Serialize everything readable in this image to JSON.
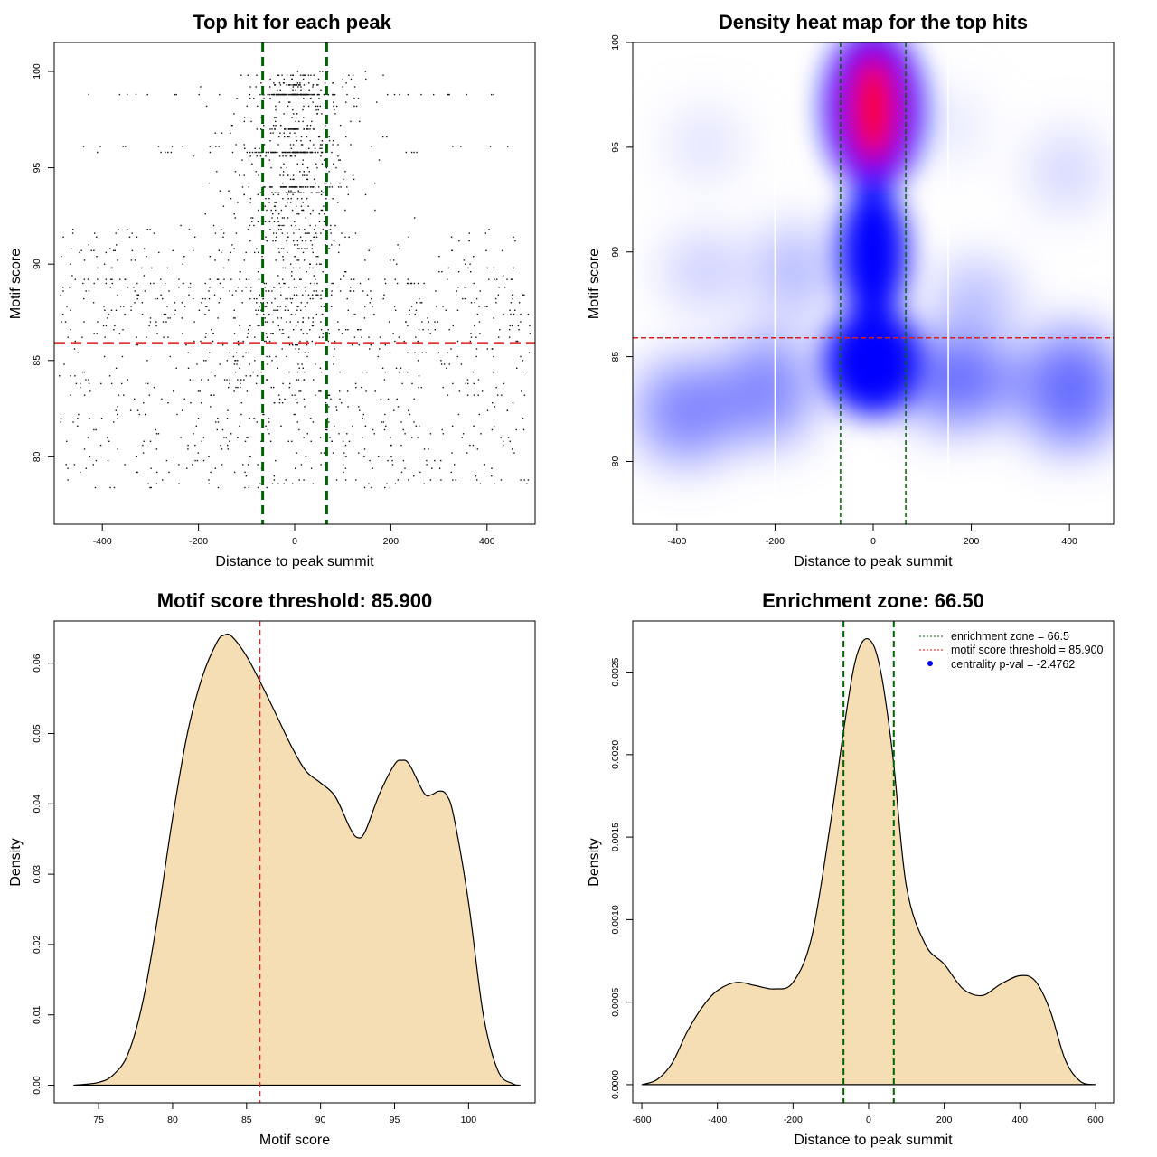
{
  "chart_data": [
    {
      "type": "scatter",
      "title": "Top hit for each peak",
      "xlabel": "Distance to peak summit",
      "ylabel": "Motif score",
      "xlim": [
        -500,
        500
      ],
      "ylim": [
        76.5,
        101.5
      ],
      "x_ticks": [
        -400,
        -200,
        0,
        200,
        400
      ],
      "y_ticks": [
        80,
        85,
        90,
        95,
        100
      ],
      "enrichment_zone": 66.5,
      "motif_threshold": 85.9,
      "point_summary": "~1900 top-hit points; dense central band (|x| < 100) at scores 93-100 with horizontal streaks at 98.8 and 95.8"
    },
    {
      "type": "heatmap",
      "title": "Density heat map for the top hits",
      "xlabel": "Distance to peak summit",
      "ylabel": "Motif score",
      "xlim": [
        -490,
        490
      ],
      "ylim": [
        77,
        100
      ],
      "x_ticks": [
        -400,
        -200,
        0,
        200,
        400
      ],
      "y_ticks": [
        80,
        85,
        90,
        95,
        100
      ],
      "enrichment_zone": 66.5,
      "motif_threshold": 85.9,
      "white_lines_x": [
        -200,
        153
      ],
      "color_scale": [
        "#ffffff",
        "#0000ff",
        "#ff0000"
      ]
    },
    {
      "type": "area",
      "title": "Motif score threshold: 85.900",
      "xlabel": "Motif score",
      "ylabel": "Density",
      "xlim": [
        72,
        104.5
      ],
      "ylim": [
        -0.0025,
        0.066
      ],
      "x_ticks": [
        75,
        80,
        85,
        90,
        95,
        100
      ],
      "y_ticks": [
        0.0,
        0.01,
        0.02,
        0.03,
        0.04,
        0.05,
        0.06
      ],
      "y_tick_labels": [
        "0.00",
        "0.01",
        "0.02",
        "0.03",
        "0.04",
        "0.05",
        "0.06"
      ],
      "x": [
        73.3,
        75,
        76,
        77,
        78,
        79,
        80,
        81,
        82,
        83,
        83.5,
        84,
        85,
        86,
        87,
        88,
        89,
        90,
        91,
        92,
        92.5,
        93,
        94,
        95,
        95.5,
        96,
        97,
        97.5,
        98,
        98.5,
        99,
        100,
        101,
        102,
        103,
        103.5
      ],
      "y": [
        0.0,
        0.0004,
        0.0015,
        0.0045,
        0.012,
        0.024,
        0.038,
        0.05,
        0.058,
        0.063,
        0.064,
        0.0638,
        0.061,
        0.057,
        0.0527,
        0.0483,
        0.0447,
        0.043,
        0.041,
        0.0365,
        0.0352,
        0.036,
        0.0415,
        0.0456,
        0.0462,
        0.0456,
        0.0415,
        0.0413,
        0.0418,
        0.0413,
        0.0382,
        0.026,
        0.01,
        0.002,
        0.0002,
        0.0
      ],
      "threshold_line": 85.9
    },
    {
      "type": "area",
      "title": "Enrichment zone: 66.50",
      "xlabel": "Distance to peak summit",
      "ylabel": "Density",
      "xlim": [
        -624,
        648
      ],
      "ylim": [
        -0.00011,
        0.00281
      ],
      "x_ticks": [
        -600,
        -400,
        -200,
        0,
        200,
        400,
        600
      ],
      "y_ticks": [
        0.0,
        0.0005,
        0.001,
        0.0015,
        0.002,
        0.0025
      ],
      "y_tick_labels": [
        "0.0000",
        "0.0005",
        "0.0010",
        "0.0015",
        "0.0020",
        "0.0025"
      ],
      "x": [
        -600,
        -560,
        -520,
        -480,
        -440,
        -400,
        -350,
        -300,
        -250,
        -200,
        -150,
        -100,
        -66,
        -40,
        -20,
        0,
        20,
        40,
        66,
        100,
        150,
        200,
        250,
        300,
        350,
        400,
        440,
        480,
        520,
        560,
        600
      ],
      "y": [
        0.0,
        3e-05,
        0.00013,
        0.00032,
        0.00047,
        0.00057,
        0.00062,
        0.0006,
        0.00058,
        0.00062,
        0.0009,
        0.0016,
        0.00215,
        0.00252,
        0.00267,
        0.0027,
        0.00262,
        0.0024,
        0.00195,
        0.0012,
        0.00085,
        0.00073,
        0.00058,
        0.00054,
        0.00061,
        0.00066,
        0.00063,
        0.00045,
        0.00015,
        2e-05,
        0.0
      ],
      "enrichment_zone": 66.5,
      "legend": [
        {
          "label": "enrichment zone = 66.5",
          "color": "#006400",
          "style": "dotted-line"
        },
        {
          "label": "motif score threshold = 85.900",
          "color": "#ff0000",
          "style": "dotted-line"
        },
        {
          "label": "centrality p-val = -2.4762",
          "color": "#0000ff",
          "style": "point"
        }
      ],
      "legend_position": "top-right"
    }
  ]
}
